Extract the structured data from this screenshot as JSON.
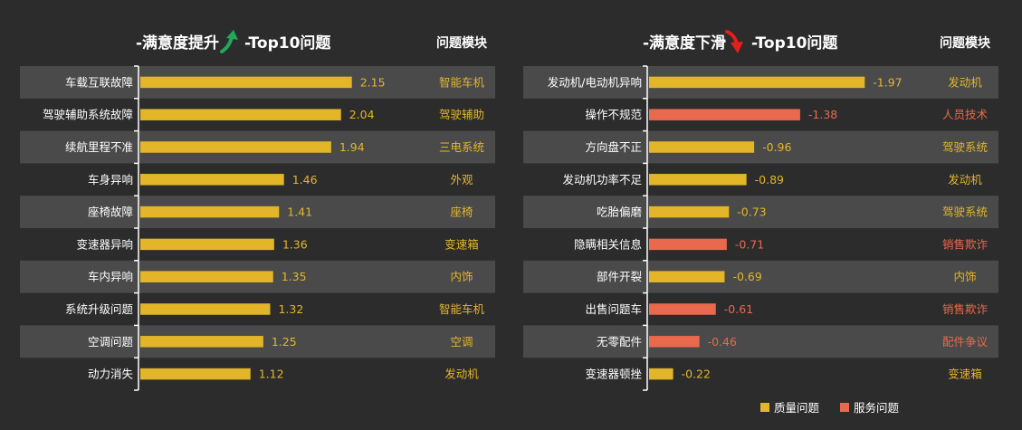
{
  "colors": {
    "background": "#2c2c2c",
    "row_band": "#4a4a4a",
    "quality": "#e3b62a",
    "service": "#e8694e",
    "up_arrow": "#22a65a",
    "down_arrow": "#e51e1e"
  },
  "chart_data": [
    {
      "type": "bar",
      "orientation": "horizontal",
      "title_prefix": "-满意度提升",
      "title_suffix": "-Top10问题",
      "arrow": "up-arrow-icon",
      "module_header": "问题模块",
      "xlim": [
        0,
        2.3
      ],
      "categories": [
        "车载互联故障",
        "驾驶辅助系统故障",
        "续航里程不准",
        "车身异响",
        "座椅故障",
        "变速器异响",
        "车内异响",
        "系统升级问题",
        "空调问题",
        "动力消失"
      ],
      "values": [
        2.15,
        2.04,
        1.94,
        1.46,
        1.41,
        1.36,
        1.35,
        1.32,
        1.25,
        1.12
      ],
      "value_labels": [
        "2.15",
        "2.04",
        "1.94",
        "1.46",
        "1.41",
        "1.36",
        "1.35",
        "1.32",
        "1.25",
        "1.12"
      ],
      "kinds": [
        "quality",
        "quality",
        "quality",
        "quality",
        "quality",
        "quality",
        "quality",
        "quality",
        "quality",
        "quality"
      ],
      "modules": [
        "智能车机",
        "驾驶辅助",
        "三电系统",
        "外观",
        "座椅",
        "变速箱",
        "内饰",
        "智能车机",
        "空调",
        "发动机"
      ]
    },
    {
      "type": "bar",
      "orientation": "horizontal",
      "title_prefix": "-满意度下滑",
      "title_suffix": "-Top10问题",
      "arrow": "down-arrow-icon",
      "module_header": "问题模块",
      "xlim": [
        0,
        2.1
      ],
      "categories": [
        "发动机/电动机异响",
        "操作不规范",
        "方向盘不正",
        "发动机功率不足",
        "吃胎偏磨",
        "隐瞒相关信息",
        "部件开裂",
        "出售问题车",
        "无零配件",
        "变速器顿挫"
      ],
      "values": [
        -1.97,
        -1.38,
        -0.96,
        -0.89,
        -0.73,
        -0.71,
        -0.69,
        -0.61,
        -0.46,
        -0.22
      ],
      "value_labels": [
        "-1.97",
        "-1.38",
        "-0.96",
        "-0.89",
        "-0.73",
        "-0.71",
        "-0.69",
        "-0.61",
        "-0.46",
        "-0.22"
      ],
      "kinds": [
        "quality",
        "service",
        "quality",
        "quality",
        "quality",
        "service",
        "quality",
        "service",
        "service",
        "quality"
      ],
      "modules": [
        "发动机",
        "人员技术",
        "驾驶系统",
        "发动机",
        "驾驶系统",
        "销售欺诈",
        "内饰",
        "销售欺诈",
        "配件争议",
        "变速箱"
      ]
    }
  ],
  "legend": [
    {
      "kind": "quality",
      "label": "质量问题"
    },
    {
      "kind": "service",
      "label": "服务问题"
    }
  ]
}
